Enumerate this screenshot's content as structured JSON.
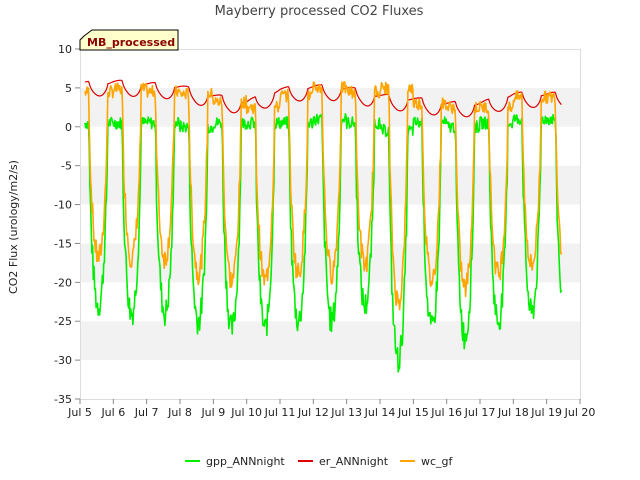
{
  "chart_data": {
    "type": "line",
    "title": "Mayberry processed CO2 Fluxes",
    "xlabel": "",
    "ylabel": "CO2 Flux (urology/m2/s)",
    "badge": "MB_processed",
    "xlim": [
      5,
      20
    ],
    "ylim": [
      -35,
      10
    ],
    "x_ticks": [
      5,
      6,
      7,
      8,
      9,
      10,
      11,
      12,
      13,
      14,
      15,
      16,
      17,
      18,
      19,
      20
    ],
    "x_tick_labels": [
      "Jul 5",
      "Jul 6",
      "Jul 7",
      "Jul 8",
      "Jul 9",
      "Jul 10",
      "Jul 11",
      "Jul 12",
      "Jul 13",
      "Jul 14",
      "Jul 15",
      "Jul 16",
      "Jul 17",
      "Jul 18",
      "Jul 19",
      "Jul 20"
    ],
    "y_ticks": [
      -35,
      -30,
      -25,
      -20,
      -15,
      -10,
      -5,
      0,
      5,
      10
    ],
    "y_tick_labels": [
      "-35",
      "-30",
      "-25",
      "-20",
      "-15",
      "-10",
      "-5",
      "0",
      "5",
      "10"
    ],
    "legend_position": "bottom-center",
    "daily_min": {
      "days": [
        5,
        6,
        7,
        8,
        9,
        10,
        11,
        12,
        13,
        14,
        15,
        16,
        17,
        18
      ],
      "gpp": [
        -23,
        -24,
        -24,
        -25,
        -26,
        -26,
        -25,
        -25,
        -23,
        -30,
        -26,
        -27,
        -25,
        -24
      ],
      "wc": [
        -18,
        -18,
        -18,
        -20,
        -21,
        -21,
        -20,
        -20,
        -19,
        -24,
        -21,
        -22,
        -20,
        -19
      ]
    },
    "daily_night": {
      "gpp": [
        0.5,
        0.5,
        0.5,
        0,
        0.5,
        0.5,
        0.5,
        1,
        0.5,
        -0.5,
        0.5,
        0,
        0.5,
        1
      ],
      "er": [
        5.5,
        5.8,
        5.5,
        5.2,
        4.0,
        3.2,
        4.8,
        5.2,
        5.0,
        4.0,
        3.6,
        3.0,
        3.0,
        4.2
      ],
      "wc": [
        4.5,
        4.8,
        4.5,
        4.2,
        3.2,
        2.5,
        4.0,
        5.0,
        4.5,
        5.0,
        3.0,
        2.5,
        2.5,
        3.8
      ]
    },
    "series": [
      {
        "name": "gpp_ANNnight",
        "color": "#00ee00"
      },
      {
        "name": "er_ANNnight",
        "color": "#dd0000"
      },
      {
        "name": "wc_gf",
        "color": "#ffa500"
      }
    ]
  }
}
